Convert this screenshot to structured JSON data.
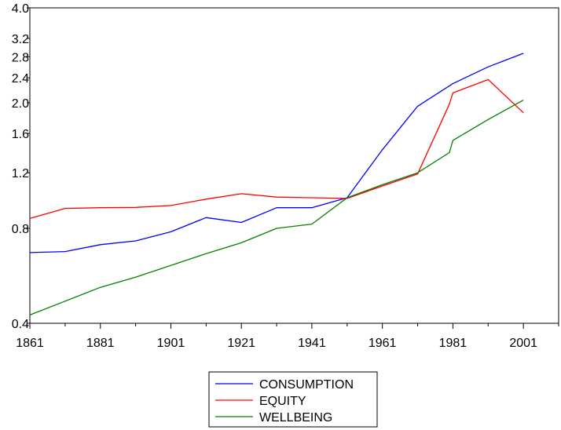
{
  "chart_data": {
    "type": "line",
    "title": "",
    "xlabel": "",
    "ylabel": "",
    "y_scale": "log",
    "xlim": [
      1861,
      2011
    ],
    "ylim": [
      0.4,
      4.0
    ],
    "grid": false,
    "legend_position": "bottom-center",
    "x_ticks": [
      "1861",
      "1881",
      "1901",
      "1921",
      "1941",
      "1961",
      "1981",
      "2001"
    ],
    "y_ticks": [
      "0.4",
      "0.8",
      "1.2",
      "1.6",
      "2.0",
      "2.4",
      "2.8",
      "3.2",
      "4.0"
    ],
    "series": [
      {
        "name": "CONSUMPTION",
        "color": "#0000ff",
        "points": [
          [
            1861,
            0.67
          ],
          [
            1871,
            0.675
          ],
          [
            1881,
            0.71
          ],
          [
            1891,
            0.73
          ],
          [
            1901,
            0.78
          ],
          [
            1911,
            0.865
          ],
          [
            1921,
            0.835
          ],
          [
            1931,
            0.93
          ],
          [
            1941,
            0.93
          ],
          [
            1951,
            1.0
          ],
          [
            1961,
            1.42
          ],
          [
            1971,
            1.95
          ],
          [
            1981,
            2.3
          ],
          [
            1991,
            2.6
          ],
          [
            2001,
            2.87
          ]
        ]
      },
      {
        "name": "EQUITY",
        "color": "#ff0000",
        "points": [
          [
            1861,
            0.86
          ],
          [
            1871,
            0.925
          ],
          [
            1881,
            0.93
          ],
          [
            1891,
            0.932
          ],
          [
            1901,
            0.945
          ],
          [
            1911,
            0.99
          ],
          [
            1921,
            1.03
          ],
          [
            1931,
            1.005
          ],
          [
            1941,
            1.0
          ],
          [
            1951,
            0.995
          ],
          [
            1961,
            1.09
          ],
          [
            1971,
            1.19
          ],
          [
            1980,
            1.98
          ],
          [
            1981,
            2.15
          ],
          [
            1991,
            2.37
          ],
          [
            2001,
            1.86
          ]
        ]
      },
      {
        "name": "WELLBEING",
        "color": "#008000",
        "points": [
          [
            1861,
            0.425
          ],
          [
            1871,
            0.47
          ],
          [
            1881,
            0.52
          ],
          [
            1891,
            0.56
          ],
          [
            1901,
            0.61
          ],
          [
            1911,
            0.665
          ],
          [
            1921,
            0.72
          ],
          [
            1931,
            0.8
          ],
          [
            1941,
            0.825
          ],
          [
            1951,
            1.0
          ],
          [
            1961,
            1.1
          ],
          [
            1971,
            1.2
          ],
          [
            1980,
            1.39
          ],
          [
            1981,
            1.52
          ],
          [
            1991,
            1.77
          ],
          [
            2001,
            2.04
          ]
        ]
      }
    ]
  }
}
